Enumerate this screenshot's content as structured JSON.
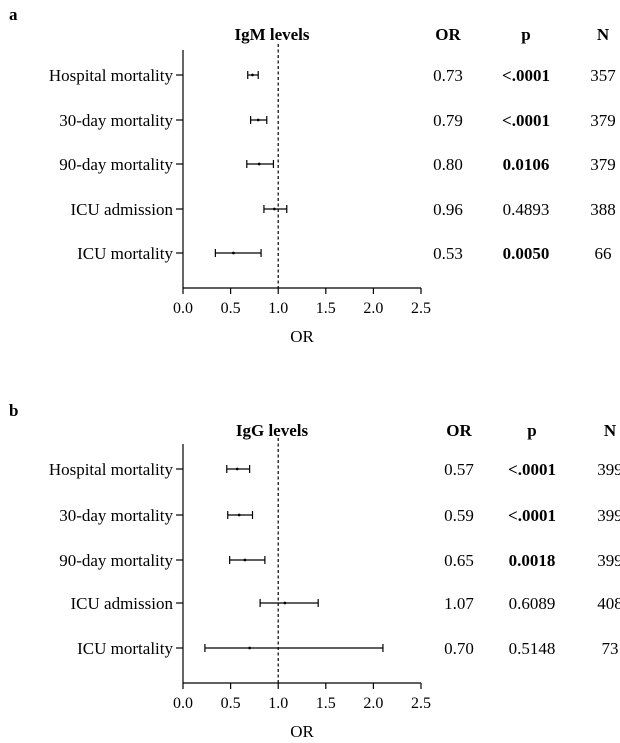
{
  "panels": [
    {
      "panel_label": "a",
      "title": "IgM levels",
      "col_or": "OR",
      "col_p": "p",
      "col_n": "N",
      "xlabel": "OR",
      "ticks": [
        "0.0",
        "0.5",
        "1.0",
        "1.5",
        "2.0",
        "2.5"
      ],
      "rows": [
        {
          "label": "Hospital mortality",
          "or": "0.73",
          "p": "<.0001",
          "p_bold": true,
          "n": "357"
        },
        {
          "label": "30-day mortality",
          "or": "0.79",
          "p": "<.0001",
          "p_bold": true,
          "n": "379"
        },
        {
          "label": "90-day mortality",
          "or": "0.80",
          "p": "0.0106",
          "p_bold": true,
          "n": "379"
        },
        {
          "label": "ICU admission",
          "or": "0.96",
          "p": "0.4893",
          "p_bold": false,
          "n": "388"
        },
        {
          "label": "ICU mortality",
          "or": "0.53",
          "p": "0.0050",
          "p_bold": true,
          "n": "66"
        }
      ]
    },
    {
      "panel_label": "b",
      "title": "IgG levels",
      "col_or": "OR",
      "col_p": "p",
      "col_n": "N",
      "xlabel": "OR",
      "ticks": [
        "0.0",
        "0.5",
        "1.0",
        "1.5",
        "2.0",
        "2.5"
      ],
      "rows": [
        {
          "label": "Hospital mortality",
          "or": "0.57",
          "p": "<.0001",
          "p_bold": true,
          "n": "399"
        },
        {
          "label": "30-day mortality",
          "or": "0.59",
          "p": "<.0001",
          "p_bold": true,
          "n": "399"
        },
        {
          "label": "90-day mortality",
          "or": "0.65",
          "p": "0.0018",
          "p_bold": true,
          "n": "399"
        },
        {
          "label": "ICU admission",
          "or": "1.07",
          "p": "0.6089",
          "p_bold": false,
          "n": "408"
        },
        {
          "label": "ICU mortality",
          "or": "0.70",
          "p": "0.5148",
          "p_bold": false,
          "n": "73"
        }
      ]
    }
  ],
  "chart_data": [
    {
      "type": "forest",
      "title": "IgM levels",
      "xlabel": "OR",
      "xlim": [
        0,
        2.5
      ],
      "reference_line": 1.0,
      "categories": [
        "Hospital mortality",
        "30-day mortality",
        "90-day mortality",
        "ICU admission",
        "ICU mortality"
      ],
      "or": [
        0.73,
        0.79,
        0.8,
        0.96,
        0.53
      ],
      "ci_low": [
        0.68,
        0.71,
        0.67,
        0.85,
        0.34
      ],
      "ci_high": [
        0.79,
        0.88,
        0.95,
        1.09,
        0.82
      ],
      "p": [
        "<.0001",
        "<.0001",
        "0.0106",
        "0.4893",
        "0.0050"
      ],
      "n": [
        357,
        379,
        379,
        388,
        66
      ]
    },
    {
      "type": "forest",
      "title": "IgG levels",
      "xlabel": "OR",
      "xlim": [
        0,
        2.5
      ],
      "reference_line": 1.0,
      "categories": [
        "Hospital mortality",
        "30-day mortality",
        "90-day mortality",
        "ICU admission",
        "ICU mortality"
      ],
      "or": [
        0.57,
        0.59,
        0.65,
        1.07,
        0.7
      ],
      "ci_low": [
        0.46,
        0.47,
        0.49,
        0.81,
        0.23
      ],
      "ci_high": [
        0.7,
        0.73,
        0.86,
        1.42,
        2.1
      ],
      "p": [
        "<.0001",
        "<.0001",
        "0.0018",
        "0.6089",
        "0.5148"
      ],
      "n": [
        399,
        399,
        399,
        408,
        73
      ]
    }
  ]
}
